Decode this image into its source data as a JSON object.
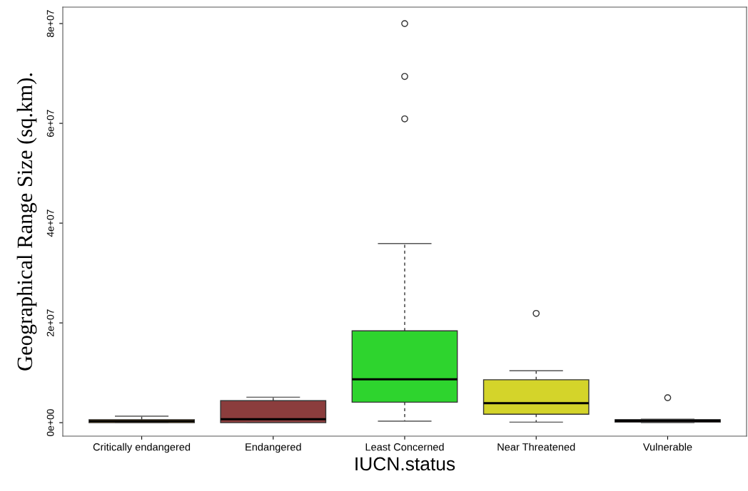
{
  "chart_data": {
    "type": "box",
    "xlabel": "IUCN.status",
    "ylabel": "Geographical Range Size (sq.km).",
    "categories": [
      "Critically endangered",
      "Endangered",
      "Least Concerned",
      "Near Threatened",
      "Vulnerable"
    ],
    "colors": [
      "#c8963c",
      "#8b3d3d",
      "#2ed42e",
      "#d4d42a",
      "#2a0a0a"
    ],
    "boxes": [
      {
        "low": 0,
        "q1": 0,
        "median": 300000,
        "q3": 600000,
        "high": 1300000
      },
      {
        "low": 0,
        "q1": 0,
        "median": 700000,
        "q3": 4400000,
        "high": 5100000
      },
      {
        "low": 300000,
        "q1": 4100000,
        "median": 8700000,
        "q3": 18400000,
        "high": 35900000,
        "outliers": [
          60900000,
          69400000,
          80000000
        ]
      },
      {
        "low": 100000,
        "q1": 1700000,
        "median": 3900000,
        "q3": 8600000,
        "high": 10400000,
        "outliers": [
          21900000
        ]
      },
      {
        "low": 0,
        "q1": 100000,
        "median": 400000,
        "q3": 600000,
        "high": 700000,
        "outliers": [
          5000000
        ]
      }
    ],
    "ylim": [
      -2700000,
      83300000
    ],
    "yticks": [
      {
        "value": 0,
        "label": "0e+00"
      },
      {
        "value": 20000000,
        "label": "2e+07"
      },
      {
        "value": 40000000,
        "label": "4e+07"
      },
      {
        "value": 60000000,
        "label": "6e+07"
      },
      {
        "value": 80000000,
        "label": "8e+07"
      }
    ],
    "grid": false,
    "legend": false
  }
}
